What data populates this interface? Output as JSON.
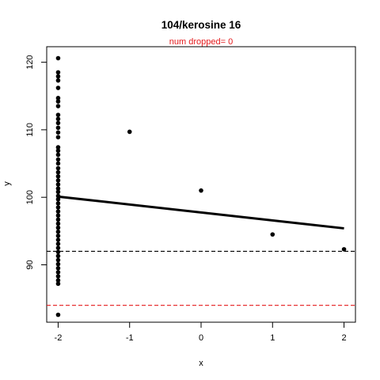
{
  "chart_data": {
    "type": "scatter",
    "title": "104/kerosine 16",
    "subtitle": "num dropped= 0",
    "xlabel": "x",
    "ylabel": "y",
    "xlim": [
      -2.16,
      2.16
    ],
    "ylim": [
      81.5,
      122.3
    ],
    "x_ticks": [
      -2,
      -1,
      0,
      1,
      2
    ],
    "y_ticks": [
      90,
      100,
      110,
      120
    ],
    "grid": false,
    "colors": {
      "points": "#000000",
      "fit": "#000000",
      "ref_line": "#000000",
      "limit_line": "#e41a1c",
      "subtitle": "#e41a1c"
    },
    "points": [
      [
        -2,
        120.6
      ],
      [
        -2,
        118.5
      ],
      [
        -2,
        117.9
      ],
      [
        -2,
        117.3
      ],
      [
        -2,
        116.2
      ],
      [
        -2,
        114.7
      ],
      [
        -2,
        114.2
      ],
      [
        -2,
        113.5
      ],
      [
        -2,
        112.2
      ],
      [
        -2,
        111.6
      ],
      [
        -2,
        111.0
      ],
      [
        -2,
        110.3
      ],
      [
        -2,
        109.6
      ],
      [
        -2,
        108.9
      ],
      [
        -2,
        107.4
      ],
      [
        -2,
        106.9
      ],
      [
        -2,
        106.3
      ],
      [
        -2,
        105.6
      ],
      [
        -2,
        105.0
      ],
      [
        -2,
        104.3
      ],
      [
        -2,
        103.7
      ],
      [
        -2,
        103.1
      ],
      [
        -2,
        102.5
      ],
      [
        -2,
        101.9
      ],
      [
        -2,
        101.3
      ],
      [
        -2,
        100.8
      ],
      [
        -2,
        100.2
      ],
      [
        -2,
        99.7
      ],
      [
        -2,
        99.1
      ],
      [
        -2,
        98.5
      ],
      [
        -2,
        97.9
      ],
      [
        -2,
        97.3
      ],
      [
        -2,
        96.7
      ],
      [
        -2,
        96.1
      ],
      [
        -2,
        95.5
      ],
      [
        -2,
        94.9
      ],
      [
        -2,
        94.3
      ],
      [
        -2,
        93.7
      ],
      [
        -2,
        93.1
      ],
      [
        -2,
        92.5
      ],
      [
        -2,
        91.9
      ],
      [
        -2,
        91.3
      ],
      [
        -2,
        90.7
      ],
      [
        -2,
        90.1
      ],
      [
        -2,
        89.5
      ],
      [
        -2,
        88.9
      ],
      [
        -2,
        88.3
      ],
      [
        -2,
        87.7
      ],
      [
        -2,
        87.2
      ],
      [
        -2,
        82.6
      ],
      [
        -1,
        109.7
      ],
      [
        0,
        101.0
      ],
      [
        1,
        94.5
      ],
      [
        2,
        92.3
      ]
    ],
    "fit_line": {
      "x": [
        -2,
        2
      ],
      "y": [
        100.1,
        95.4
      ]
    },
    "reference_lines": [
      {
        "y": 92.0,
        "style": "dashed",
        "color": "#000000"
      },
      {
        "y": 84.0,
        "style": "dashed",
        "color": "#e41a1c"
      }
    ]
  }
}
